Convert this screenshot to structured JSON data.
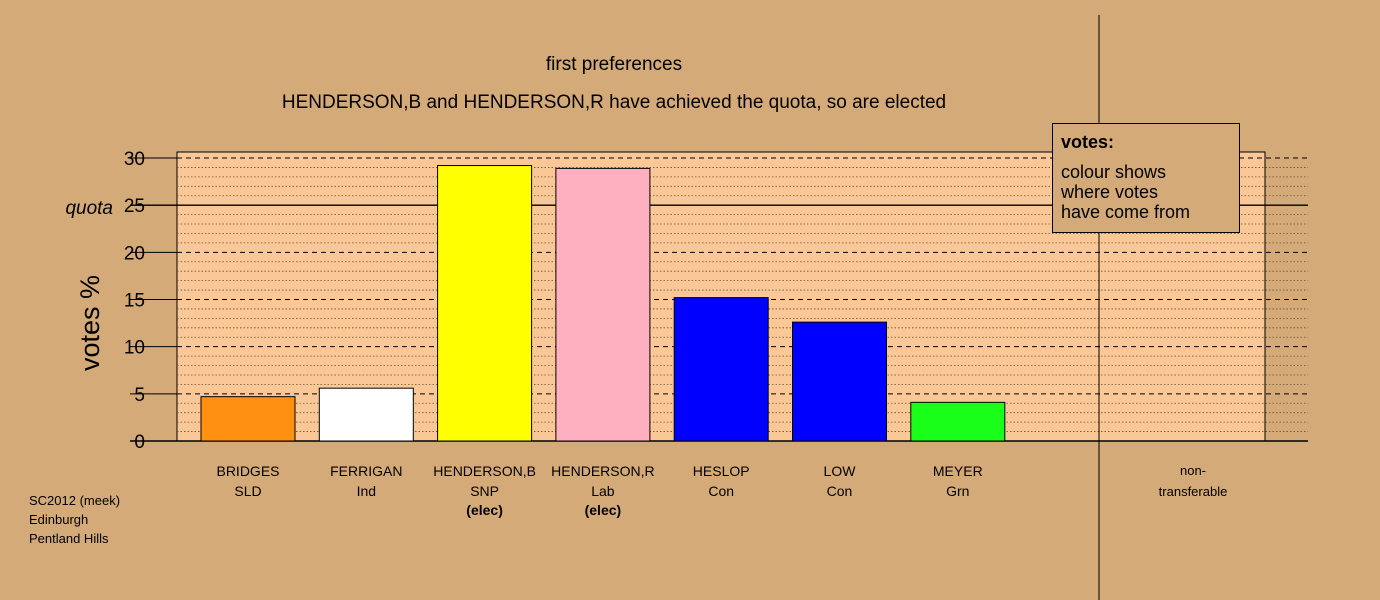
{
  "chart_data": {
    "type": "bar",
    "title": "first preferences",
    "subtitle": "HENDERSON,B and HENDERSON,R have achieved the quota, so are elected",
    "ylabel": "votes %",
    "ylim": [
      0,
      30
    ],
    "yticks": [
      0,
      5,
      10,
      15,
      20,
      25,
      30
    ],
    "quota": {
      "value": 25,
      "label": "quota"
    },
    "categories": [
      {
        "name": "BRIDGES",
        "party": "SLD",
        "status": "",
        "value": 4.7,
        "color": "#ff9010"
      },
      {
        "name": "FERRIGAN",
        "party": "Ind",
        "status": "",
        "value": 5.6,
        "color": "#ffffff"
      },
      {
        "name": "HENDERSON,B",
        "party": "SNP",
        "status": "(elec)",
        "value": 29.2,
        "color": "#ffff00"
      },
      {
        "name": "HENDERSON,R",
        "party": "Lab",
        "status": "(elec)",
        "value": 28.9,
        "color": "#ffb0c0"
      },
      {
        "name": "HESLOP",
        "party": "Con",
        "status": "",
        "value": 15.2,
        "color": "#0000ff"
      },
      {
        "name": "LOW",
        "party": "Con",
        "status": "",
        "value": 12.6,
        "color": "#0000ff"
      },
      {
        "name": "MEYER",
        "party": "Grn",
        "status": "",
        "value": 4.1,
        "color": "#1aff1a"
      }
    ],
    "non_transferable": {
      "label_line1": "non-",
      "label_line2": "transferable",
      "value": 0
    },
    "grid": true,
    "legend_position": "top-right"
  },
  "legend": {
    "title": "votes:",
    "line1": "colour shows",
    "line2": "where votes",
    "line3": "have come from"
  },
  "source": {
    "line1": "SC2012 (meek)",
    "line2": "Edinburgh",
    "line3": "Pentland Hills"
  },
  "colors": {
    "background": "#d4aa78",
    "plot_area": "#fac896"
  }
}
